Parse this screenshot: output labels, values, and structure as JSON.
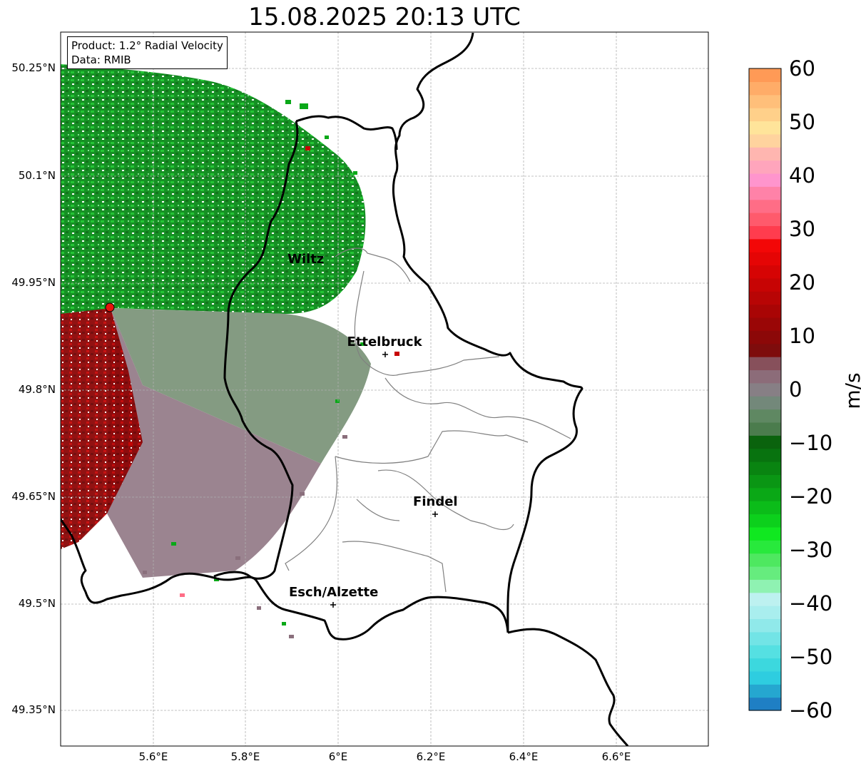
{
  "title": "15.08.2025 20:13 UTC",
  "info": {
    "product": "Product: 1.2° Radial Velocity",
    "data": "Data: RMIB"
  },
  "lat_ticks": [
    "50.25°N",
    "50.1°N",
    "49.95°N",
    "49.8°N",
    "49.65°N",
    "49.5°N",
    "49.35°N"
  ],
  "lon_ticks": [
    "5.6°E",
    "5.8°E",
    "6°E",
    "6.2°E",
    "6.4°E",
    "6.6°E"
  ],
  "extent": {
    "lon_min": 5.4,
    "lon_max": 6.8,
    "lat_min": 49.3,
    "lat_max": 50.3
  },
  "radar": {
    "lon": 5.505,
    "lat": 49.914,
    "color": "#e8120c"
  },
  "cities": [
    {
      "name": "Wiltz",
      "lon": 5.93,
      "lat": 49.966
    },
    {
      "name": "Ettelbruck",
      "lon": 6.1,
      "lat": 49.85
    },
    {
      "name": "Findel",
      "lon": 6.21,
      "lat": 49.627
    },
    {
      "name": "Esch/Alzette",
      "lon": 5.99,
      "lat": 49.5
    }
  ],
  "colorbar": {
    "unit": "m/s",
    "min": -60,
    "max": 60,
    "ticks": [
      "60",
      "50",
      "40",
      "30",
      "20",
      "10",
      "0",
      "−10",
      "−20",
      "−30",
      "−40",
      "−50",
      "−60"
    ],
    "colors": [
      "#1f7fc4",
      "#25a7d0",
      "#2ecde0",
      "#3cd8de",
      "#55e0e2",
      "#72e4e6",
      "#90e9ea",
      "#a9eeee",
      "#bdf1f0",
      "#8ff2b2",
      "#66ec7e",
      "#4ee860",
      "#28e93c",
      "#10e820",
      "#0cd01c",
      "#0bbc19",
      "#0aa816",
      "#0a9614",
      "#098411",
      "#08730f",
      "#0a630d",
      "#4b7c4d",
      "#5f8862",
      "#73887a",
      "#877f85",
      "#8c6c79",
      "#87505b",
      "#7e0c0c",
      "#8c0808",
      "#9a0606",
      "#a90505",
      "#b80505",
      "#c70404",
      "#d60404",
      "#e50505",
      "#f30707",
      "#ff3c4e",
      "#ff5a6c",
      "#ff6d86",
      "#ff82a8",
      "#ff95cd",
      "#ffa5bc",
      "#ffb6b0",
      "#ffd39e",
      "#ffe49a",
      "#ffd08a",
      "#ffbf7a",
      "#ffac68",
      "#ff9a56"
    ]
  },
  "velocity_colors": {
    "receding": "#8b0000",
    "approaching": "#00a020",
    "zero": "#7a8a78"
  }
}
